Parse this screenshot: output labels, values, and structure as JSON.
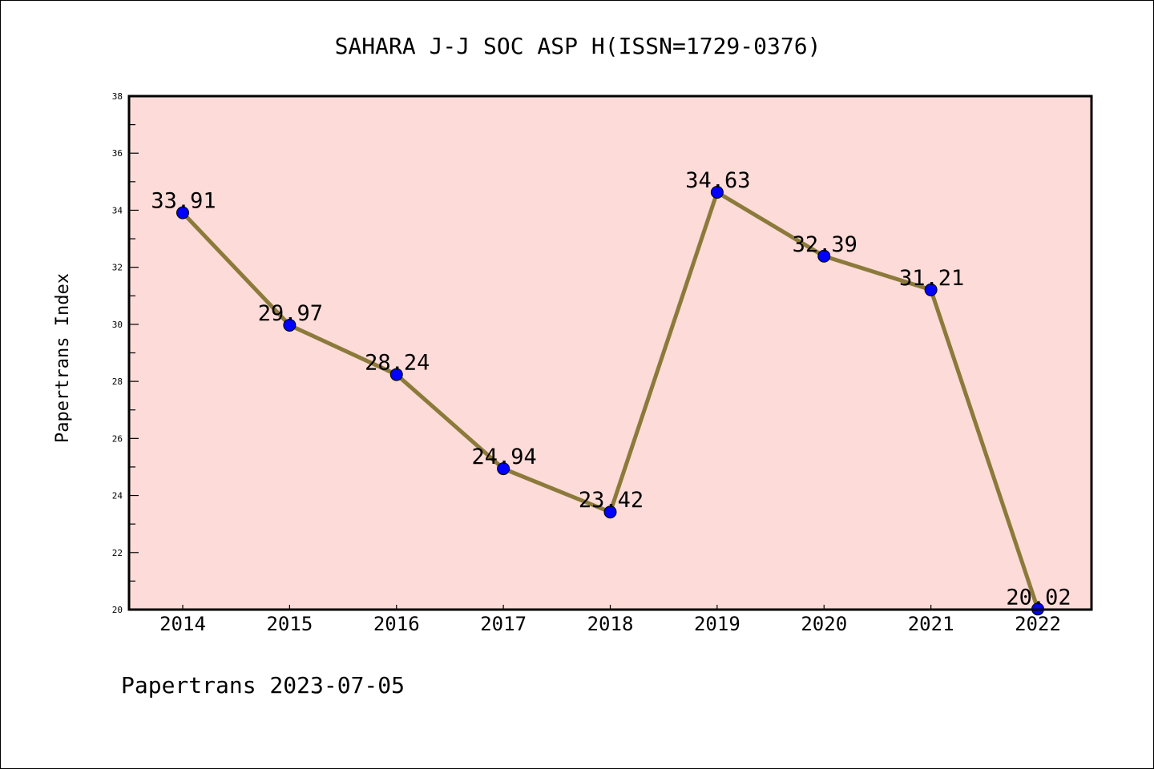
{
  "chart_data": {
    "type": "line",
    "title": "SAHARA J-J SOC ASP H(ISSN=1729-0376)",
    "xlabel": "",
    "ylabel": "Papertrans Index",
    "categories": [
      "2014",
      "2015",
      "2016",
      "2017",
      "2018",
      "2019",
      "2020",
      "2021",
      "2022"
    ],
    "values": [
      33.91,
      29.97,
      28.24,
      24.94,
      23.42,
      34.63,
      32.39,
      31.21,
      20.02
    ],
    "data_labels": [
      "33.91",
      "29.97",
      "28.24",
      "24.94",
      "23.42",
      "34.63",
      "32.39",
      "31.21",
      "20.02"
    ],
    "ylim": [
      20,
      38
    ],
    "yticks": [
      "20",
      "22",
      "24",
      "26",
      "28",
      "30",
      "32",
      "34",
      "36",
      "38"
    ],
    "grid": false,
    "footer": "Papertrans 2023-07-05",
    "colors": {
      "background": "#fddbd8",
      "line": "#8b7a3a",
      "marker": "#0000ff"
    }
  }
}
